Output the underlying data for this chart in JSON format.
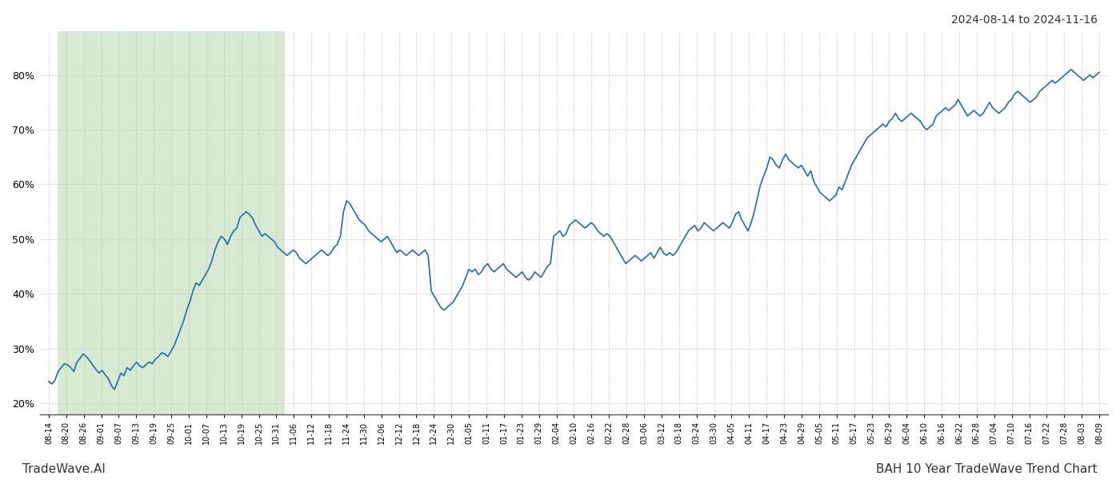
{
  "title_right": "2024-08-14 to 2024-11-16",
  "footer_left": "TradeWave.AI",
  "footer_right": "BAH 10 Year TradeWave Trend Chart",
  "ylim": [
    18,
    88
  ],
  "yticks": [
    20,
    30,
    40,
    50,
    60,
    70,
    80
  ],
  "line_color": "#1f6bb0",
  "line_width": 1.2,
  "bg_color": "#ffffff",
  "grid_color": "#c8c8c8",
  "highlight_xstart_label": "08-20",
  "highlight_xend_label": "10-31",
  "highlight_color": "#d6ead2",
  "x_labels": [
    "08-14",
    "08-20",
    "08-26",
    "09-01",
    "09-07",
    "09-13",
    "09-19",
    "09-25",
    "10-01",
    "10-07",
    "10-13",
    "10-19",
    "10-25",
    "10-31",
    "11-06",
    "11-12",
    "11-18",
    "11-24",
    "11-30",
    "12-06",
    "12-12",
    "12-18",
    "12-24",
    "12-30",
    "01-05",
    "01-11",
    "01-17",
    "01-23",
    "01-29",
    "02-04",
    "02-10",
    "02-16",
    "02-22",
    "02-28",
    "03-06",
    "03-12",
    "03-18",
    "03-24",
    "03-30",
    "04-05",
    "04-11",
    "04-17",
    "04-23",
    "04-29",
    "05-05",
    "05-11",
    "05-17",
    "05-23",
    "05-29",
    "06-04",
    "06-10",
    "06-16",
    "06-22",
    "06-28",
    "07-04",
    "07-10",
    "07-16",
    "07-22",
    "07-28",
    "08-03",
    "08-09"
  ],
  "y_values_dense": [
    24.0,
    23.5,
    24.2,
    25.8,
    26.5,
    27.2,
    27.0,
    26.5,
    25.8,
    27.5,
    28.2,
    29.0,
    28.5,
    27.8,
    27.0,
    26.2,
    25.5,
    26.0,
    25.2,
    24.5,
    23.2,
    22.5,
    24.0,
    25.5,
    25.0,
    26.5,
    26.0,
    26.8,
    27.5,
    26.8,
    26.5,
    27.0,
    27.5,
    27.2,
    28.0,
    28.5,
    29.2,
    29.0,
    28.5,
    29.5,
    30.5,
    32.0,
    33.5,
    35.0,
    37.0,
    38.5,
    40.5,
    42.0,
    41.5,
    42.5,
    43.5,
    44.5,
    46.0,
    48.0,
    49.5,
    50.5,
    50.0,
    49.0,
    50.5,
    51.5,
    52.0,
    54.0,
    54.5,
    55.0,
    54.5,
    53.8,
    52.5,
    51.5,
    50.5,
    51.0,
    50.5,
    50.0,
    49.5,
    48.5,
    48.0,
    47.5,
    47.0,
    47.5,
    48.0,
    47.5,
    46.5,
    46.0,
    45.5,
    46.0,
    46.5,
    47.0,
    47.5,
    48.0,
    47.5,
    47.0,
    47.5,
    48.5,
    49.0,
    50.5,
    55.0,
    57.0,
    56.5,
    55.5,
    54.5,
    53.5,
    53.0,
    52.5,
    51.5,
    51.0,
    50.5,
    50.0,
    49.5,
    50.0,
    50.5,
    49.5,
    48.5,
    47.5,
    48.0,
    47.5,
    47.0,
    47.5,
    48.0,
    47.5,
    47.0,
    47.5,
    48.0,
    47.0,
    40.5,
    39.5,
    38.5,
    37.5,
    37.0,
    37.5,
    38.0,
    38.5,
    39.5,
    40.5,
    41.5,
    43.0,
    44.5,
    44.0,
    44.5,
    43.5,
    44.0,
    45.0,
    45.5,
    44.5,
    44.0,
    44.5,
    45.0,
    45.5,
    44.5,
    44.0,
    43.5,
    43.0,
    43.5,
    44.0,
    43.0,
    42.5,
    43.0,
    44.0,
    43.5,
    43.0,
    44.0,
    45.0,
    45.5,
    50.5,
    51.0,
    51.5,
    50.5,
    51.0,
    52.5,
    53.0,
    53.5,
    53.0,
    52.5,
    52.0,
    52.5,
    53.0,
    52.5,
    51.5,
    51.0,
    50.5,
    51.0,
    50.5,
    49.5,
    48.5,
    47.5,
    46.5,
    45.5,
    46.0,
    46.5,
    47.0,
    46.5,
    46.0,
    46.5,
    47.0,
    47.5,
    46.5,
    47.5,
    48.5,
    47.5,
    47.0,
    47.5,
    47.0,
    47.5,
    48.5,
    49.5,
    50.5,
    51.5,
    52.0,
    52.5,
    51.5,
    52.0,
    53.0,
    52.5,
    52.0,
    51.5,
    52.0,
    52.5,
    53.0,
    52.5,
    52.0,
    53.0,
    54.5,
    55.0,
    53.5,
    52.5,
    51.5,
    53.0,
    55.0,
    57.5,
    60.0,
    61.5,
    63.0,
    65.0,
    64.5,
    63.5,
    63.0,
    64.5,
    65.5,
    64.5,
    64.0,
    63.5,
    63.0,
    63.5,
    62.5,
    61.5,
    62.5,
    60.5,
    59.5,
    58.5,
    58.0,
    57.5,
    57.0,
    57.5,
    58.0,
    59.5,
    59.0,
    60.5,
    62.0,
    63.5,
    64.5,
    65.5,
    66.5,
    67.5,
    68.5,
    69.0,
    69.5,
    70.0,
    70.5,
    71.0,
    70.5,
    71.5,
    72.0,
    73.0,
    72.0,
    71.5,
    72.0,
    72.5,
    73.0,
    72.5,
    72.0,
    71.5,
    70.5,
    70.0,
    70.5,
    71.0,
    72.5,
    73.0,
    73.5,
    74.0,
    73.5,
    74.0,
    74.5,
    75.5,
    74.5,
    73.5,
    72.5,
    73.0,
    73.5,
    73.0,
    72.5,
    73.0,
    74.0,
    75.0,
    74.0,
    73.5,
    73.0,
    73.5,
    74.0,
    75.0,
    75.5,
    76.5,
    77.0,
    76.5,
    76.0,
    75.5,
    75.0,
    75.5,
    76.0,
    77.0,
    77.5,
    78.0,
    78.5,
    79.0,
    78.5,
    79.0,
    79.5,
    80.0,
    80.5,
    81.0,
    80.5,
    80.0,
    79.5,
    79.0,
    79.5,
    80.0,
    79.5,
    80.0,
    80.5
  ]
}
